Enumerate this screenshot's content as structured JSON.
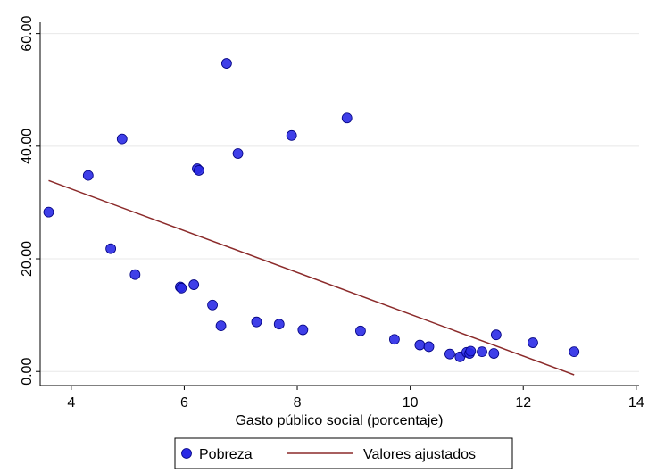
{
  "chart_data": {
    "type": "scatter",
    "xlabel": "Gasto público social (porcentaje)",
    "ylabel": "",
    "xlim": [
      3.45,
      14.05
    ],
    "ylim": [
      -2.5,
      62
    ],
    "x_ticks": [
      4,
      6,
      8,
      10,
      12,
      14
    ],
    "y_ticks": [
      0,
      20,
      40,
      60
    ],
    "x_tick_labels": [
      "4",
      "6",
      "8",
      "10",
      "12",
      "14"
    ],
    "y_tick_labels": [
      "0.00",
      "20.00",
      "40.00",
      "60.00"
    ],
    "grid": "horizontal",
    "legend_position": "bottom",
    "legend": [
      {
        "label": "Pobreza",
        "kind": "marker",
        "color": "#2a2ae6"
      },
      {
        "label": "Valores ajustados",
        "kind": "line",
        "color": "#8b2a2a"
      }
    ],
    "series": [
      {
        "name": "Pobreza",
        "kind": "scatter",
        "color": "#2a2ae6",
        "points": [
          {
            "x": 3.6,
            "y": 28.3
          },
          {
            "x": 4.3,
            "y": 34.8
          },
          {
            "x": 4.7,
            "y": 21.8
          },
          {
            "x": 4.9,
            "y": 41.3
          },
          {
            "x": 5.13,
            "y": 17.2
          },
          {
            "x": 5.93,
            "y": 15.0
          },
          {
            "x": 5.95,
            "y": 14.8
          },
          {
            "x": 6.17,
            "y": 15.4
          },
          {
            "x": 6.23,
            "y": 36.0
          },
          {
            "x": 6.26,
            "y": 35.7
          },
          {
            "x": 6.5,
            "y": 11.8
          },
          {
            "x": 6.65,
            "y": 8.1
          },
          {
            "x": 6.75,
            "y": 54.7
          },
          {
            "x": 6.95,
            "y": 38.7
          },
          {
            "x": 7.28,
            "y": 8.8
          },
          {
            "x": 7.68,
            "y": 8.4
          },
          {
            "x": 7.9,
            "y": 41.9
          },
          {
            "x": 8.1,
            "y": 7.4
          },
          {
            "x": 8.88,
            "y": 45.0
          },
          {
            "x": 9.12,
            "y": 7.2
          },
          {
            "x": 9.72,
            "y": 5.7
          },
          {
            "x": 10.17,
            "y": 4.7
          },
          {
            "x": 10.33,
            "y": 4.4
          },
          {
            "x": 10.7,
            "y": 3.1
          },
          {
            "x": 10.88,
            "y": 2.6
          },
          {
            "x": 11.0,
            "y": 3.4
          },
          {
            "x": 11.05,
            "y": 3.2
          },
          {
            "x": 11.07,
            "y": 3.6
          },
          {
            "x": 11.27,
            "y": 3.5
          },
          {
            "x": 11.48,
            "y": 3.2
          },
          {
            "x": 11.52,
            "y": 6.5
          },
          {
            "x": 12.17,
            "y": 5.1
          },
          {
            "x": 12.9,
            "y": 3.5
          }
        ]
      },
      {
        "name": "Valores ajustados",
        "kind": "line",
        "color": "#8b2a2a",
        "points": [
          {
            "x": 3.6,
            "y": 33.9
          },
          {
            "x": 12.9,
            "y": -0.6
          }
        ]
      }
    ]
  }
}
